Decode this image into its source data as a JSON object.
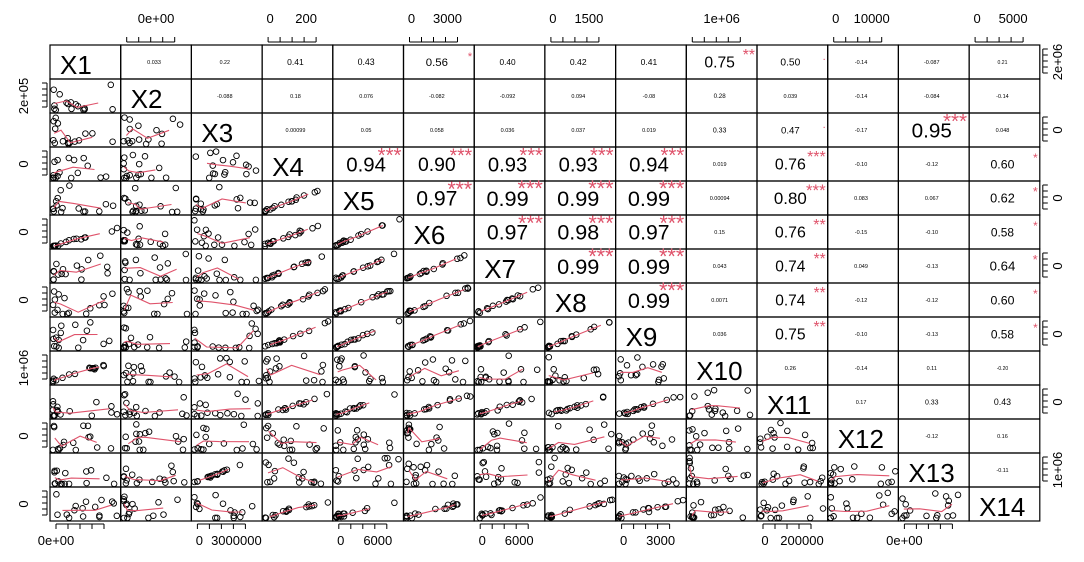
{
  "chart_data": {
    "type": "scatter",
    "title": "",
    "variables": [
      "X1",
      "X2",
      "X3",
      "X4",
      "X5",
      "X6",
      "X7",
      "X8",
      "X9",
      "X10",
      "X11",
      "X12",
      "X13",
      "X14"
    ],
    "correlations": [
      [
        null,
        0.033,
        0.22,
        0.41,
        0.43,
        0.56,
        0.4,
        0.42,
        0.41,
        0.75,
        0.5,
        -0.14,
        -0.087,
        0.21
      ],
      [
        null,
        null,
        -0.088,
        0.18,
        0.076,
        -0.082,
        -0.092,
        0.094,
        -0.08,
        0.28,
        0.039,
        -0.14,
        -0.084,
        -0.14
      ],
      [
        null,
        null,
        null,
        0.00099,
        0.05,
        0.058,
        0.036,
        0.037,
        0.019,
        0.33,
        0.47,
        -0.17,
        0.95,
        0.048
      ],
      [
        null,
        null,
        null,
        null,
        0.94,
        0.9,
        0.93,
        0.93,
        0.94,
        0.019,
        0.76,
        -0.1,
        -0.12,
        0.6
      ],
      [
        null,
        null,
        null,
        null,
        null,
        0.97,
        0.99,
        0.99,
        0.99,
        0.00094,
        0.8,
        0.083,
        0.067,
        0.62
      ],
      [
        null,
        null,
        null,
        null,
        null,
        null,
        0.97,
        0.98,
        0.97,
        0.15,
        0.76,
        -0.15,
        -0.1,
        0.58
      ],
      [
        null,
        null,
        null,
        null,
        null,
        null,
        null,
        0.99,
        0.99,
        0.043,
        0.74,
        0.049,
        -0.13,
        0.64
      ],
      [
        null,
        null,
        null,
        null,
        null,
        null,
        null,
        null,
        0.99,
        0.0071,
        0.74,
        -0.12,
        -0.12,
        0.6
      ],
      [
        null,
        null,
        null,
        null,
        null,
        null,
        null,
        null,
        null,
        0.036,
        0.75,
        -0.1,
        -0.13,
        0.58
      ],
      [
        null,
        null,
        null,
        null,
        null,
        null,
        null,
        null,
        null,
        null,
        0.26,
        -0.14,
        0.11,
        -0.2
      ],
      [
        null,
        null,
        null,
        null,
        null,
        null,
        null,
        null,
        null,
        null,
        null,
        0.17,
        0.33,
        0.43
      ],
      [
        null,
        null,
        null,
        null,
        null,
        null,
        null,
        null,
        null,
        null,
        null,
        null,
        -0.12,
        0.16
      ],
      [
        null,
        null,
        null,
        null,
        null,
        null,
        null,
        null,
        null,
        null,
        null,
        null,
        null,
        -0.11
      ],
      [
        null,
        null,
        null,
        null,
        null,
        null,
        null,
        null,
        null,
        null,
        null,
        null,
        null,
        null
      ]
    ],
    "correlation_labels": [
      [
        null,
        "0.033",
        "0.22",
        "0.41",
        "0.43",
        "0.56",
        "0.40",
        "0.42",
        "0.41",
        "0.75",
        "0.50",
        "-0.14",
        "-0.087",
        "0.21"
      ],
      [
        null,
        null,
        "-0.088",
        "0.18",
        "0.076",
        "-0.082",
        "-0.092",
        "0.094",
        "-0.08",
        "0.28",
        "0.039",
        "-0.14",
        "-0.084",
        "-0.14"
      ],
      [
        null,
        null,
        null,
        "0.00099",
        "0.05",
        "0.058",
        "0.036",
        "0.037",
        "0.019",
        "0.33",
        "0.47",
        "-0.17",
        "0.95",
        "0.048"
      ],
      [
        null,
        null,
        null,
        null,
        "0.94",
        "0.90",
        "0.93",
        "0.93",
        "0.94",
        "0.019",
        "0.76",
        "-0.10",
        "-0.12",
        "0.60"
      ],
      [
        null,
        null,
        null,
        null,
        null,
        "0.97",
        "0.99",
        "0.99",
        "0.99",
        "0.00094",
        "0.80",
        "0.083",
        "0.067",
        "0.62"
      ],
      [
        null,
        null,
        null,
        null,
        null,
        null,
        "0.97",
        "0.98",
        "0.97",
        "0.15",
        "0.76",
        "-0.15",
        "-0.10",
        "0.58"
      ],
      [
        null,
        null,
        null,
        null,
        null,
        null,
        null,
        "0.99",
        "0.99",
        "0.043",
        "0.74",
        "0.049",
        "-0.13",
        "0.64"
      ],
      [
        null,
        null,
        null,
        null,
        null,
        null,
        null,
        null,
        "0.99",
        "0.0071",
        "0.74",
        "-0.12",
        "-0.12",
        "0.60"
      ],
      [
        null,
        null,
        null,
        null,
        null,
        null,
        null,
        null,
        null,
        "0.036",
        "0.75",
        "-0.10",
        "-0.13",
        "0.58"
      ],
      [
        null,
        null,
        null,
        null,
        null,
        null,
        null,
        null,
        null,
        null,
        "0.26",
        "-0.14",
        "0.11",
        "-0.20"
      ],
      [
        null,
        null,
        null,
        null,
        null,
        null,
        null,
        null,
        null,
        null,
        null,
        "0.17",
        "0.33",
        "0.43"
      ],
      [
        null,
        null,
        null,
        null,
        null,
        null,
        null,
        null,
        null,
        null,
        null,
        null,
        "-0.12",
        "0.16"
      ],
      [
        null,
        null,
        null,
        null,
        null,
        null,
        null,
        null,
        null,
        null,
        null,
        null,
        null,
        "-0.11"
      ],
      [
        null,
        null,
        null,
        null,
        null,
        null,
        null,
        null,
        null,
        null,
        null,
        null,
        null,
        null
      ]
    ],
    "significance": [
      [
        null,
        "",
        "",
        "",
        "",
        "*",
        "",
        "",
        "",
        "**",
        ".",
        "",
        "",
        ""
      ],
      [
        null,
        null,
        "",
        "",
        "",
        "",
        "",
        "",
        "",
        "",
        "",
        "",
        "",
        ""
      ],
      [
        null,
        null,
        null,
        "",
        "",
        "",
        "",
        "",
        "",
        "",
        ".",
        "",
        "***",
        ""
      ],
      [
        null,
        null,
        null,
        null,
        "***",
        "***",
        "***",
        "***",
        "***",
        "",
        "***",
        "",
        "",
        "*"
      ],
      [
        null,
        null,
        null,
        null,
        null,
        "***",
        "***",
        "***",
        "***",
        "",
        "***",
        "",
        "",
        "*"
      ],
      [
        null,
        null,
        null,
        null,
        null,
        null,
        "***",
        "***",
        "***",
        "",
        "**",
        "",
        "",
        "*"
      ],
      [
        null,
        null,
        null,
        null,
        null,
        null,
        null,
        "***",
        "***",
        "",
        "**",
        "",
        "",
        "*"
      ],
      [
        null,
        null,
        null,
        null,
        null,
        null,
        null,
        null,
        "***",
        "",
        "**",
        "",
        "",
        "*"
      ],
      [
        null,
        null,
        null,
        null,
        null,
        null,
        null,
        null,
        null,
        "",
        "**",
        "",
        "",
        "*"
      ],
      [
        null,
        null,
        null,
        null,
        null,
        null,
        null,
        null,
        null,
        null,
        "",
        "",
        "",
        ""
      ],
      [
        null,
        null,
        null,
        null,
        null,
        null,
        null,
        null,
        null,
        null,
        null,
        "",
        "",
        ""
      ],
      [
        null,
        null,
        null,
        null,
        null,
        null,
        null,
        null,
        null,
        null,
        null,
        null,
        "",
        ""
      ],
      [
        null,
        null,
        null,
        null,
        null,
        null,
        null,
        null,
        null,
        null,
        null,
        null,
        null,
        ""
      ],
      [
        null,
        null,
        null,
        null,
        null,
        null,
        null,
        null,
        null,
        null,
        null,
        null,
        null,
        null
      ]
    ],
    "top_axis_labels": [
      {
        "col": 1,
        "labels": [
          "0e+00"
        ]
      },
      {
        "col": 3,
        "labels": [
          "0",
          "200"
        ]
      },
      {
        "col": 5,
        "labels": [
          "0",
          "3000"
        ]
      },
      {
        "col": 7,
        "labels": [
          "0",
          "1500"
        ]
      },
      {
        "col": 9,
        "labels": [
          "1e+06"
        ]
      },
      {
        "col": 11,
        "labels": [
          "0",
          "10000"
        ]
      },
      {
        "col": 13,
        "labels": [
          "0",
          "5000"
        ]
      }
    ],
    "bottom_axis_labels": [
      {
        "col": 0,
        "labels": [
          "0e+00"
        ]
      },
      {
        "col": 2,
        "labels": [
          "0",
          "3000000"
        ]
      },
      {
        "col": 4,
        "labels": [
          "0",
          "6000"
        ]
      },
      {
        "col": 6,
        "labels": [
          "0",
          "6000"
        ]
      },
      {
        "col": 8,
        "labels": [
          "0",
          "3000"
        ]
      },
      {
        "col": 10,
        "labels": [
          "0",
          "200000"
        ]
      },
      {
        "col": 12,
        "labels": [
          "0e+00"
        ]
      }
    ],
    "left_axis_labels": [
      {
        "row": 1,
        "labels": [
          "2e+05"
        ]
      },
      {
        "row": 3,
        "labels": [
          "0"
        ]
      },
      {
        "row": 5,
        "labels": [
          "0"
        ]
      },
      {
        "row": 7,
        "labels": [
          "0"
        ]
      },
      {
        "row": 9,
        "labels": [
          "1e+06"
        ]
      },
      {
        "row": 11,
        "labels": [
          "0"
        ]
      },
      {
        "row": 13,
        "labels": [
          "0"
        ]
      }
    ],
    "right_axis_labels": [
      {
        "row": 0,
        "labels": [
          "2e+06"
        ]
      },
      {
        "row": 2,
        "labels": [
          "0"
        ]
      },
      {
        "row": 4,
        "labels": [
          "0"
        ]
      },
      {
        "row": 6,
        "labels": [
          "0"
        ]
      },
      {
        "row": 8,
        "labels": [
          "0"
        ]
      },
      {
        "row": 10,
        "labels": [
          "0"
        ]
      },
      {
        "row": 12,
        "labels": [
          "1e+06"
        ]
      }
    ],
    "colors": {
      "smooth_line": "#df536b",
      "star": "#df536b",
      "points": "#000000",
      "border": "#000000"
    }
  }
}
